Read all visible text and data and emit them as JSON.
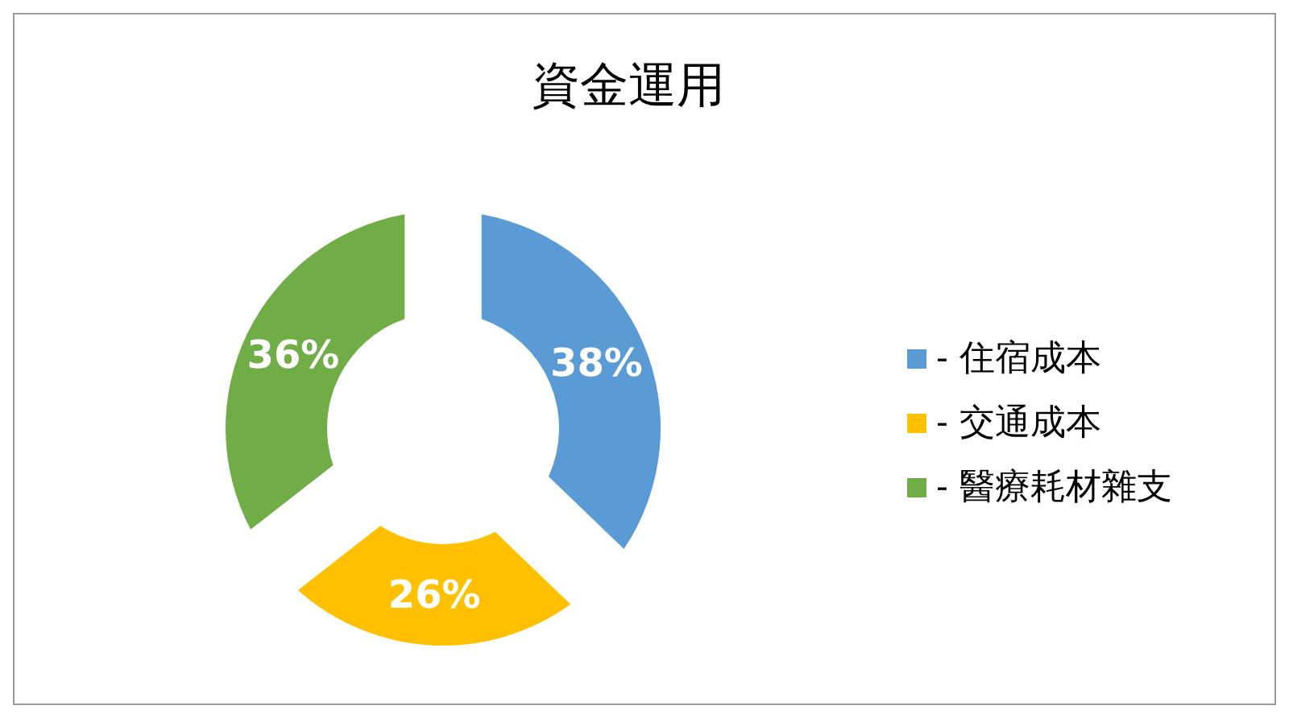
{
  "chart_data": {
    "type": "donut",
    "title": "資金運用",
    "categories": [
      "- 住宿成本",
      "- 交通成本",
      "- 醫療耗材雜支"
    ],
    "values": [
      38,
      26,
      36
    ],
    "value_labels": [
      "38%",
      "26%",
      "36%"
    ],
    "colors": [
      "#5b9bd5",
      "#ffc000",
      "#70ad47"
    ],
    "legend": "right"
  }
}
